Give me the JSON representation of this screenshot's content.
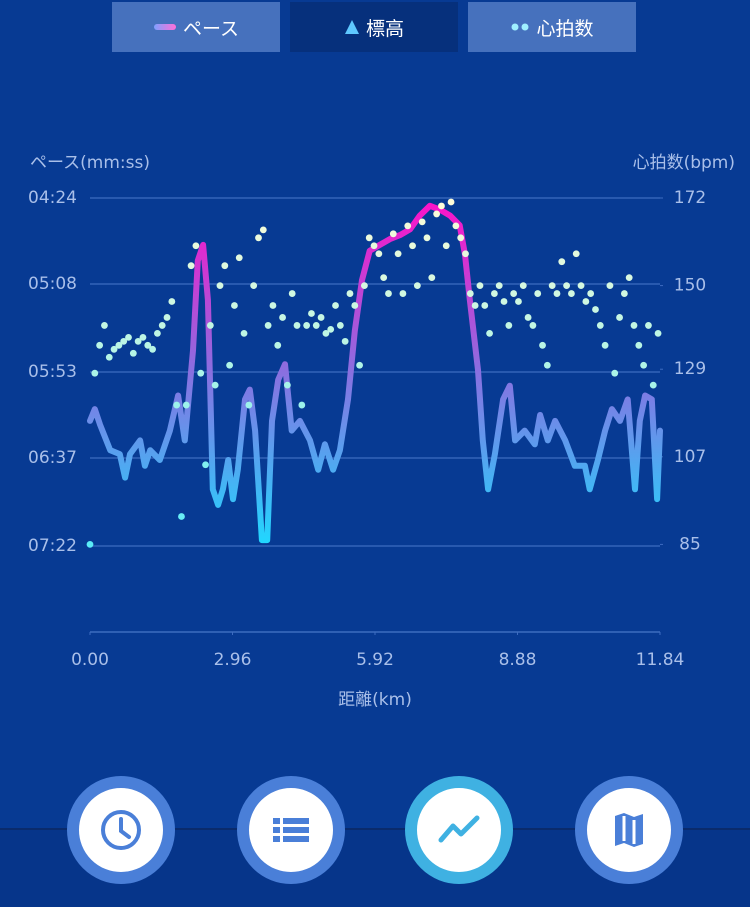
{
  "tabs": [
    "ペース",
    "標高",
    "心拍数"
  ],
  "chart_data": {
    "type": "line",
    "y_label": "ペース(mm:ss)",
    "y2_label": "心拍数(bpm)",
    "x_label": "距離(km)",
    "xlim": [
      0,
      11.84
    ],
    "xticks": [
      {
        "value": 0,
        "label": "0.00"
      },
      2.96,
      5.92,
      8.88,
      11.84
    ],
    "ylim": [
      486,
      264
    ],
    "yticks": [
      {
        "value": 264,
        "label": "04:24"
      },
      {
        "value": 308,
        "label": "05:08"
      },
      {
        "value": 353,
        "label": "05:53"
      },
      {
        "value": 397,
        "label": "06:37"
      },
      {
        "value": 442,
        "label": "07:22"
      }
    ],
    "y2lim": [
      63,
      172
    ],
    "y2ticks": [
      172,
      150,
      129,
      107,
      85
    ],
    "grid": true,
    "series": [
      {
        "type": "line",
        "axis": "y",
        "colors": [
          "#ff10c8",
          "#8a6fe0",
          "#20d8ff"
        ],
        "x": [
          0,
          0.1,
          0.21,
          0.42,
          0.62,
          0.73,
          0.83,
          1.04,
          1.14,
          1.25,
          1.45,
          1.66,
          1.83,
          1.97,
          2.14,
          2.24,
          2.35,
          2.45,
          2.55,
          2.66,
          2.76,
          2.87,
          2.97,
          3.07,
          3.22,
          3.32,
          3.43,
          3.57,
          3.68,
          3.78,
          3.91,
          4.05,
          4.19,
          4.36,
          4.57,
          4.74,
          4.88,
          5.05,
          5.19,
          5.36,
          5.5,
          5.65,
          5.81,
          6.02,
          6.23,
          6.44,
          6.65,
          6.85,
          7.06,
          7.27,
          7.48,
          7.68,
          7.79,
          7.89,
          8.06,
          8.16,
          8.27,
          8.41,
          8.58,
          8.72,
          8.83,
          9.03,
          9.24,
          9.35,
          9.51,
          9.66,
          9.87,
          10.07,
          10.28,
          10.38,
          10.55,
          10.7,
          10.84,
          11.01,
          11.17,
          11.32,
          11.42,
          11.53,
          11.67,
          11.78,
          11.84
        ],
        "values": [
          378,
          372,
          380,
          393,
          395,
          407,
          395,
          388,
          401,
          393,
          398,
          383,
          365,
          388,
          342,
          296,
          288,
          316,
          413,
          421,
          413,
          398,
          418,
          403,
          367,
          362,
          383,
          439,
          439,
          378,
          357,
          349,
          383,
          378,
          388,
          403,
          390,
          403,
          393,
          367,
          332,
          306,
          291,
          288,
          285,
          283,
          280,
          273,
          268,
          270,
          273,
          278,
          293,
          316,
          352,
          388,
          413,
          395,
          367,
          360,
          388,
          383,
          390,
          375,
          388,
          378,
          388,
          401,
          401,
          413,
          398,
          383,
          372,
          378,
          367,
          413,
          378,
          365,
          367,
          418,
          383
        ]
      },
      {
        "type": "scatter",
        "axis": "y2",
        "colors": [
          "#30e8ff",
          "#fffcd8"
        ],
        "x": [
          0,
          0.1,
          0.2,
          0.3,
          0.4,
          0.5,
          0.6,
          0.7,
          0.8,
          0.9,
          1.0,
          1.1,
          1.2,
          1.3,
          1.4,
          1.5,
          1.6,
          1.7,
          1.8,
          1.9,
          2.0,
          2.1,
          2.2,
          2.3,
          2.4,
          2.5,
          2.6,
          2.7,
          2.8,
          2.9,
          3.0,
          3.1,
          3.2,
          3.3,
          3.4,
          3.5,
          3.6,
          3.7,
          3.8,
          3.9,
          4.0,
          4.1,
          4.2,
          4.3,
          4.4,
          4.5,
          4.6,
          4.7,
          4.8,
          4.9,
          5.0,
          5.1,
          5.2,
          5.3,
          5.4,
          5.5,
          5.6,
          5.7,
          5.8,
          5.9,
          6.0,
          6.1,
          6.2,
          6.3,
          6.4,
          6.5,
          6.6,
          6.7,
          6.8,
          6.9,
          7.0,
          7.1,
          7.2,
          7.3,
          7.4,
          7.5,
          7.6,
          7.7,
          7.8,
          7.9,
          8.0,
          8.1,
          8.2,
          8.3,
          8.4,
          8.5,
          8.6,
          8.7,
          8.8,
          8.9,
          9.0,
          9.1,
          9.2,
          9.3,
          9.4,
          9.5,
          9.6,
          9.7,
          9.8,
          9.9,
          10.0,
          10.1,
          10.2,
          10.3,
          10.4,
          10.5,
          10.6,
          10.7,
          10.8,
          10.9,
          11.0,
          11.1,
          11.2,
          11.3,
          11.4,
          11.5,
          11.6,
          11.7,
          11.8
        ],
        "values": [
          85,
          128,
          135,
          140,
          132,
          134,
          135,
          136,
          137,
          133,
          136,
          137,
          135,
          134,
          138,
          140,
          142,
          146,
          120,
          92,
          120,
          155,
          160,
          128,
          105,
          140,
          125,
          150,
          155,
          130,
          145,
          157,
          138,
          120,
          150,
          162,
          164,
          140,
          145,
          135,
          142,
          125,
          148,
          140,
          120,
          140,
          143,
          140,
          142,
          138,
          139,
          145,
          140,
          136,
          148,
          145,
          130,
          150,
          162,
          160,
          158,
          152,
          148,
          163,
          158,
          148,
          165,
          160,
          150,
          166,
          162,
          152,
          168,
          170,
          160,
          171,
          165,
          162,
          158,
          148,
          145,
          150,
          145,
          138,
          148,
          150,
          146,
          140,
          148,
          146,
          150,
          142,
          140,
          148,
          135,
          130,
          150,
          148,
          156,
          150,
          148,
          158,
          150,
          146,
          148,
          144,
          140,
          135,
          150,
          128,
          142,
          148,
          152,
          140,
          135,
          130,
          140,
          125,
          138
        ]
      }
    ]
  }
}
